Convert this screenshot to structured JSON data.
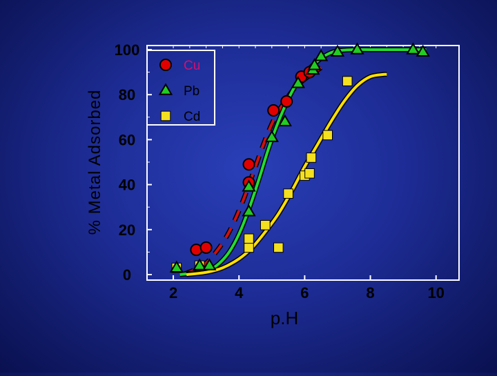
{
  "chart_data": {
    "type": "scatter",
    "xlabel": "p.H",
    "ylabel": "% Metal Adsorbed",
    "xlim": [
      2,
      10
    ],
    "ylim": [
      0,
      100
    ],
    "x_ticks": [
      "2",
      "4",
      "6",
      "8",
      "10"
    ],
    "y_ticks": [
      "0",
      "20",
      "40",
      "60",
      "80",
      "100"
    ],
    "legend_position": "top-left",
    "series": [
      {
        "name": "Cu",
        "marker": "circle",
        "color": "#e00000",
        "line_color": "#d01010",
        "line_style": "dashed",
        "points": [
          [
            2.7,
            11
          ],
          [
            3.0,
            12
          ],
          [
            4.3,
            41
          ],
          [
            4.3,
            49
          ],
          [
            5.05,
            73
          ],
          [
            5.45,
            77
          ],
          [
            5.9,
            88
          ],
          [
            6.15,
            90
          ]
        ],
        "fit": [
          [
            2.3,
            0
          ],
          [
            2.9,
            4
          ],
          [
            3.3,
            10
          ],
          [
            3.7,
            19
          ],
          [
            4.1,
            32
          ],
          [
            4.5,
            48
          ],
          [
            4.8,
            60
          ],
          [
            5.1,
            70
          ],
          [
            5.4,
            77
          ],
          [
            5.7,
            83
          ],
          [
            6.1,
            88
          ],
          [
            6.5,
            92
          ]
        ]
      },
      {
        "name": "Pb",
        "marker": "triangle",
        "color": "#22cc22",
        "line_color": "#22dd33",
        "line_style": "solid",
        "points": [
          [
            2.1,
            3
          ],
          [
            2.8,
            4
          ],
          [
            3.1,
            4
          ],
          [
            4.3,
            39
          ],
          [
            4.3,
            28
          ],
          [
            5.0,
            61
          ],
          [
            5.4,
            68
          ],
          [
            5.8,
            85
          ],
          [
            6.25,
            91
          ],
          [
            6.3,
            93
          ],
          [
            6.5,
            97
          ],
          [
            7.0,
            99
          ],
          [
            7.6,
            100
          ],
          [
            9.3,
            100
          ],
          [
            9.6,
            99
          ]
        ],
        "fit": [
          [
            2.2,
            0
          ],
          [
            2.5,
            0.5
          ],
          [
            2.8,
            1
          ],
          [
            3.1,
            2
          ],
          [
            3.4,
            5
          ],
          [
            3.7,
            10
          ],
          [
            4.0,
            18
          ],
          [
            4.3,
            29
          ],
          [
            4.6,
            42
          ],
          [
            4.9,
            56
          ],
          [
            5.2,
            68
          ],
          [
            5.5,
            78
          ],
          [
            5.8,
            86
          ],
          [
            6.1,
            91
          ],
          [
            6.4,
            95
          ],
          [
            6.7,
            98
          ],
          [
            7.0,
            99.5
          ],
          [
            7.5,
            100
          ],
          [
            8.0,
            100
          ],
          [
            9.0,
            100
          ],
          [
            9.7,
            100
          ]
        ]
      },
      {
        "name": "Cd",
        "marker": "square",
        "color": "#f5e020",
        "line_color": "#ffe000",
        "line_style": "solid",
        "points": [
          [
            2.1,
            3
          ],
          [
            2.8,
            4
          ],
          [
            4.3,
            12
          ],
          [
            4.3,
            16
          ],
          [
            4.8,
            22
          ],
          [
            5.2,
            12
          ],
          [
            5.5,
            36
          ],
          [
            6.0,
            44
          ],
          [
            6.15,
            45
          ],
          [
            6.2,
            52
          ],
          [
            6.7,
            62
          ],
          [
            7.3,
            86
          ]
        ],
        "fit": [
          [
            2.4,
            0
          ],
          [
            3.0,
            1
          ],
          [
            3.5,
            3
          ],
          [
            4.0,
            7
          ],
          [
            4.4,
            12
          ],
          [
            4.8,
            19
          ],
          [
            5.2,
            27
          ],
          [
            5.6,
            37
          ],
          [
            6.0,
            48
          ],
          [
            6.4,
            58
          ],
          [
            6.8,
            68
          ],
          [
            7.2,
            77
          ],
          [
            7.6,
            84
          ],
          [
            8.0,
            88
          ],
          [
            8.4,
            89
          ],
          [
            8.5,
            89
          ]
        ]
      }
    ]
  }
}
